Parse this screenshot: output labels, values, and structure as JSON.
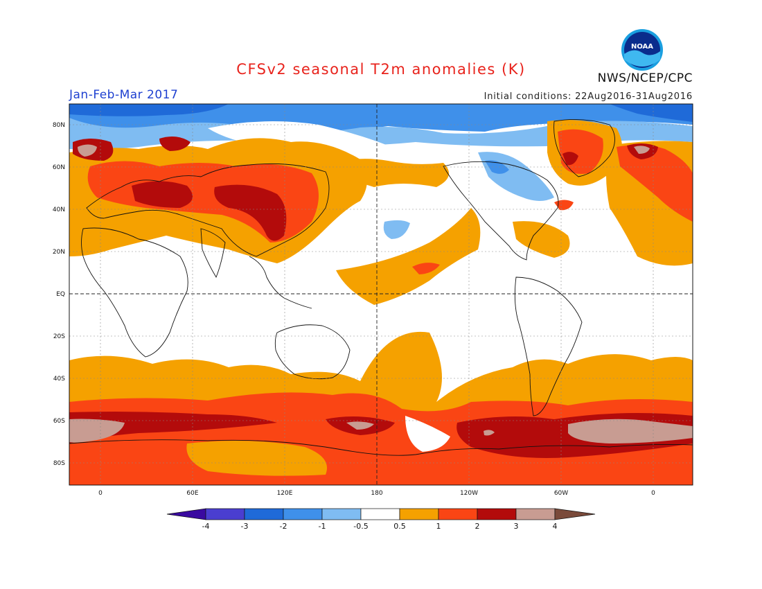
{
  "title": "CFSv2 seasonal T2m anomalies (K)",
  "period": "Jan-Feb-Mar 2017",
  "initial_conditions": "Initial conditions: 22Aug2016-31Aug2016",
  "agency": "NWS/NCEP/CPC",
  "logo_text": "NOAA",
  "lat_labels": [
    "80N",
    "60N",
    "40N",
    "20N",
    "EQ",
    "20S",
    "40S",
    "60S",
    "80S"
  ],
  "lon_labels": [
    "0",
    "60E",
    "120E",
    "180",
    "120W",
    "60W",
    "0"
  ],
  "colorbar": {
    "labels": [
      "-4",
      "-3",
      "-2",
      "-1",
      "-0.5",
      "0.5",
      "1",
      "2",
      "3",
      "4"
    ],
    "colors": [
      "#3a0aa0",
      "#4a3ed0",
      "#1f6ad8",
      "#3f90ea",
      "#7fbcf2",
      "#ffffff",
      "#f5a100",
      "#fa4514",
      "#b30b0b",
      "#c89c92",
      "#7a4a3a"
    ]
  },
  "palette": {
    "orange": "#f5a100",
    "red": "#fa4514",
    "darkred": "#b30b0b",
    "tan": "#c89c92",
    "lightblue": "#7fbcf2",
    "blue": "#3f90ea",
    "deepblue": "#1f6ad8"
  }
}
